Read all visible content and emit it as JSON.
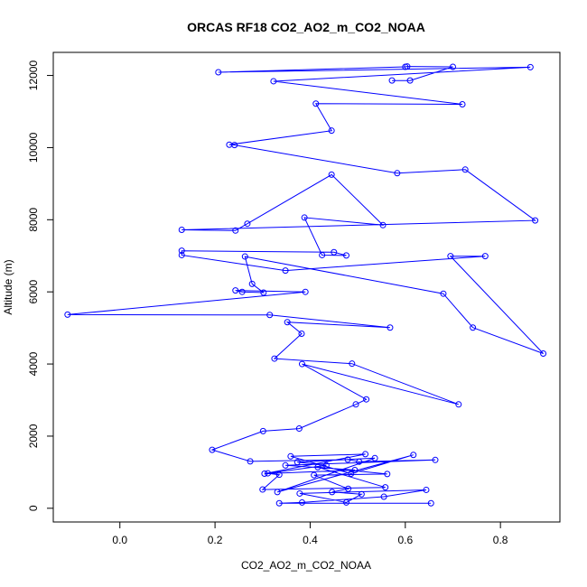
{
  "chart_data": {
    "type": "line",
    "title": "ORCAS RF18 CO2_AO2_m_CO2_NOAA",
    "xlabel": "CO2_AO2_m_CO2_NOAA",
    "ylabel": "Altitude (m)",
    "xlim": [
      -0.14,
      0.925
    ],
    "ylim": [
      -380,
      12640
    ],
    "xticks": [
      0.0,
      0.2,
      0.4,
      0.6,
      0.8
    ],
    "xtick_labels": [
      "0.0",
      "0.2",
      "0.4",
      "0.6",
      "0.8"
    ],
    "yticks": [
      0,
      2000,
      4000,
      6000,
      8000,
      10000,
      12000
    ],
    "ytick_labels": [
      "0",
      "2000",
      "4000",
      "6000",
      "8000",
      "10000",
      "12000"
    ],
    "grid": false,
    "color": "#0000ff",
    "series": [
      {
        "x": [
          0.654,
          0.335,
          0.383,
          0.555,
          0.644,
          0.378,
          0.476,
          0.508,
          0.446,
          0.48,
          0.408,
          0.562,
          0.416,
          0.558,
          0.3,
          0.335,
          0.311,
          0.434,
          0.373,
          0.536,
          0.331,
          0.617,
          0.486,
          0.359,
          0.516,
          0.304,
          0.494,
          0.348,
          0.663,
          0.503,
          0.479,
          0.274,
          0.194,
          0.301,
          0.377,
          0.496,
          0.518,
          0.383,
          0.712,
          0.488,
          0.325,
          0.382,
          0.352,
          0.568,
          0.315,
          -0.11,
          0.39,
          0.243,
          0.257,
          0.302,
          0.278,
          0.263,
          0.68,
          0.742,
          0.89,
          0.695,
          0.768,
          0.348,
          0.13,
          0.13,
          0.45,
          0.476,
          0.425,
          0.388,
          0.553,
          0.445,
          0.268,
          0.243,
          0.13,
          0.873,
          0.726,
          0.583,
          0.241,
          0.23,
          0.445,
          0.412,
          0.72,
          0.323,
          0.863,
          0.207,
          0.6,
          0.604,
          0.7,
          0.61,
          0.572
        ],
        "y": [
          140,
          140,
          160,
          320,
          510,
          410,
          160,
          390,
          450,
          540,
          920,
          950,
          1140,
          580,
          520,
          930,
          970,
          1190,
          1280,
          1390,
          450,
          1480,
          960,
          1440,
          1500,
          960,
          1060,
          1190,
          1340,
          1290,
          1350,
          1300,
          1620,
          2140,
          2210,
          2880,
          3020,
          4000,
          2880,
          4010,
          4150,
          4840,
          5160,
          5010,
          5360,
          5370,
          6000,
          6040,
          6000,
          5980,
          6220,
          6980,
          5950,
          5010,
          4290,
          6990,
          6990,
          6590,
          7020,
          7140,
          7100,
          7010,
          7020,
          8060,
          7850,
          9250,
          7890,
          7700,
          7720,
          7980,
          9390,
          9290,
          10070,
          10080,
          10470,
          11220,
          11200,
          11840,
          12230,
          12090,
          12240,
          12250,
          12240,
          11860,
          11860
        ]
      }
    ]
  }
}
